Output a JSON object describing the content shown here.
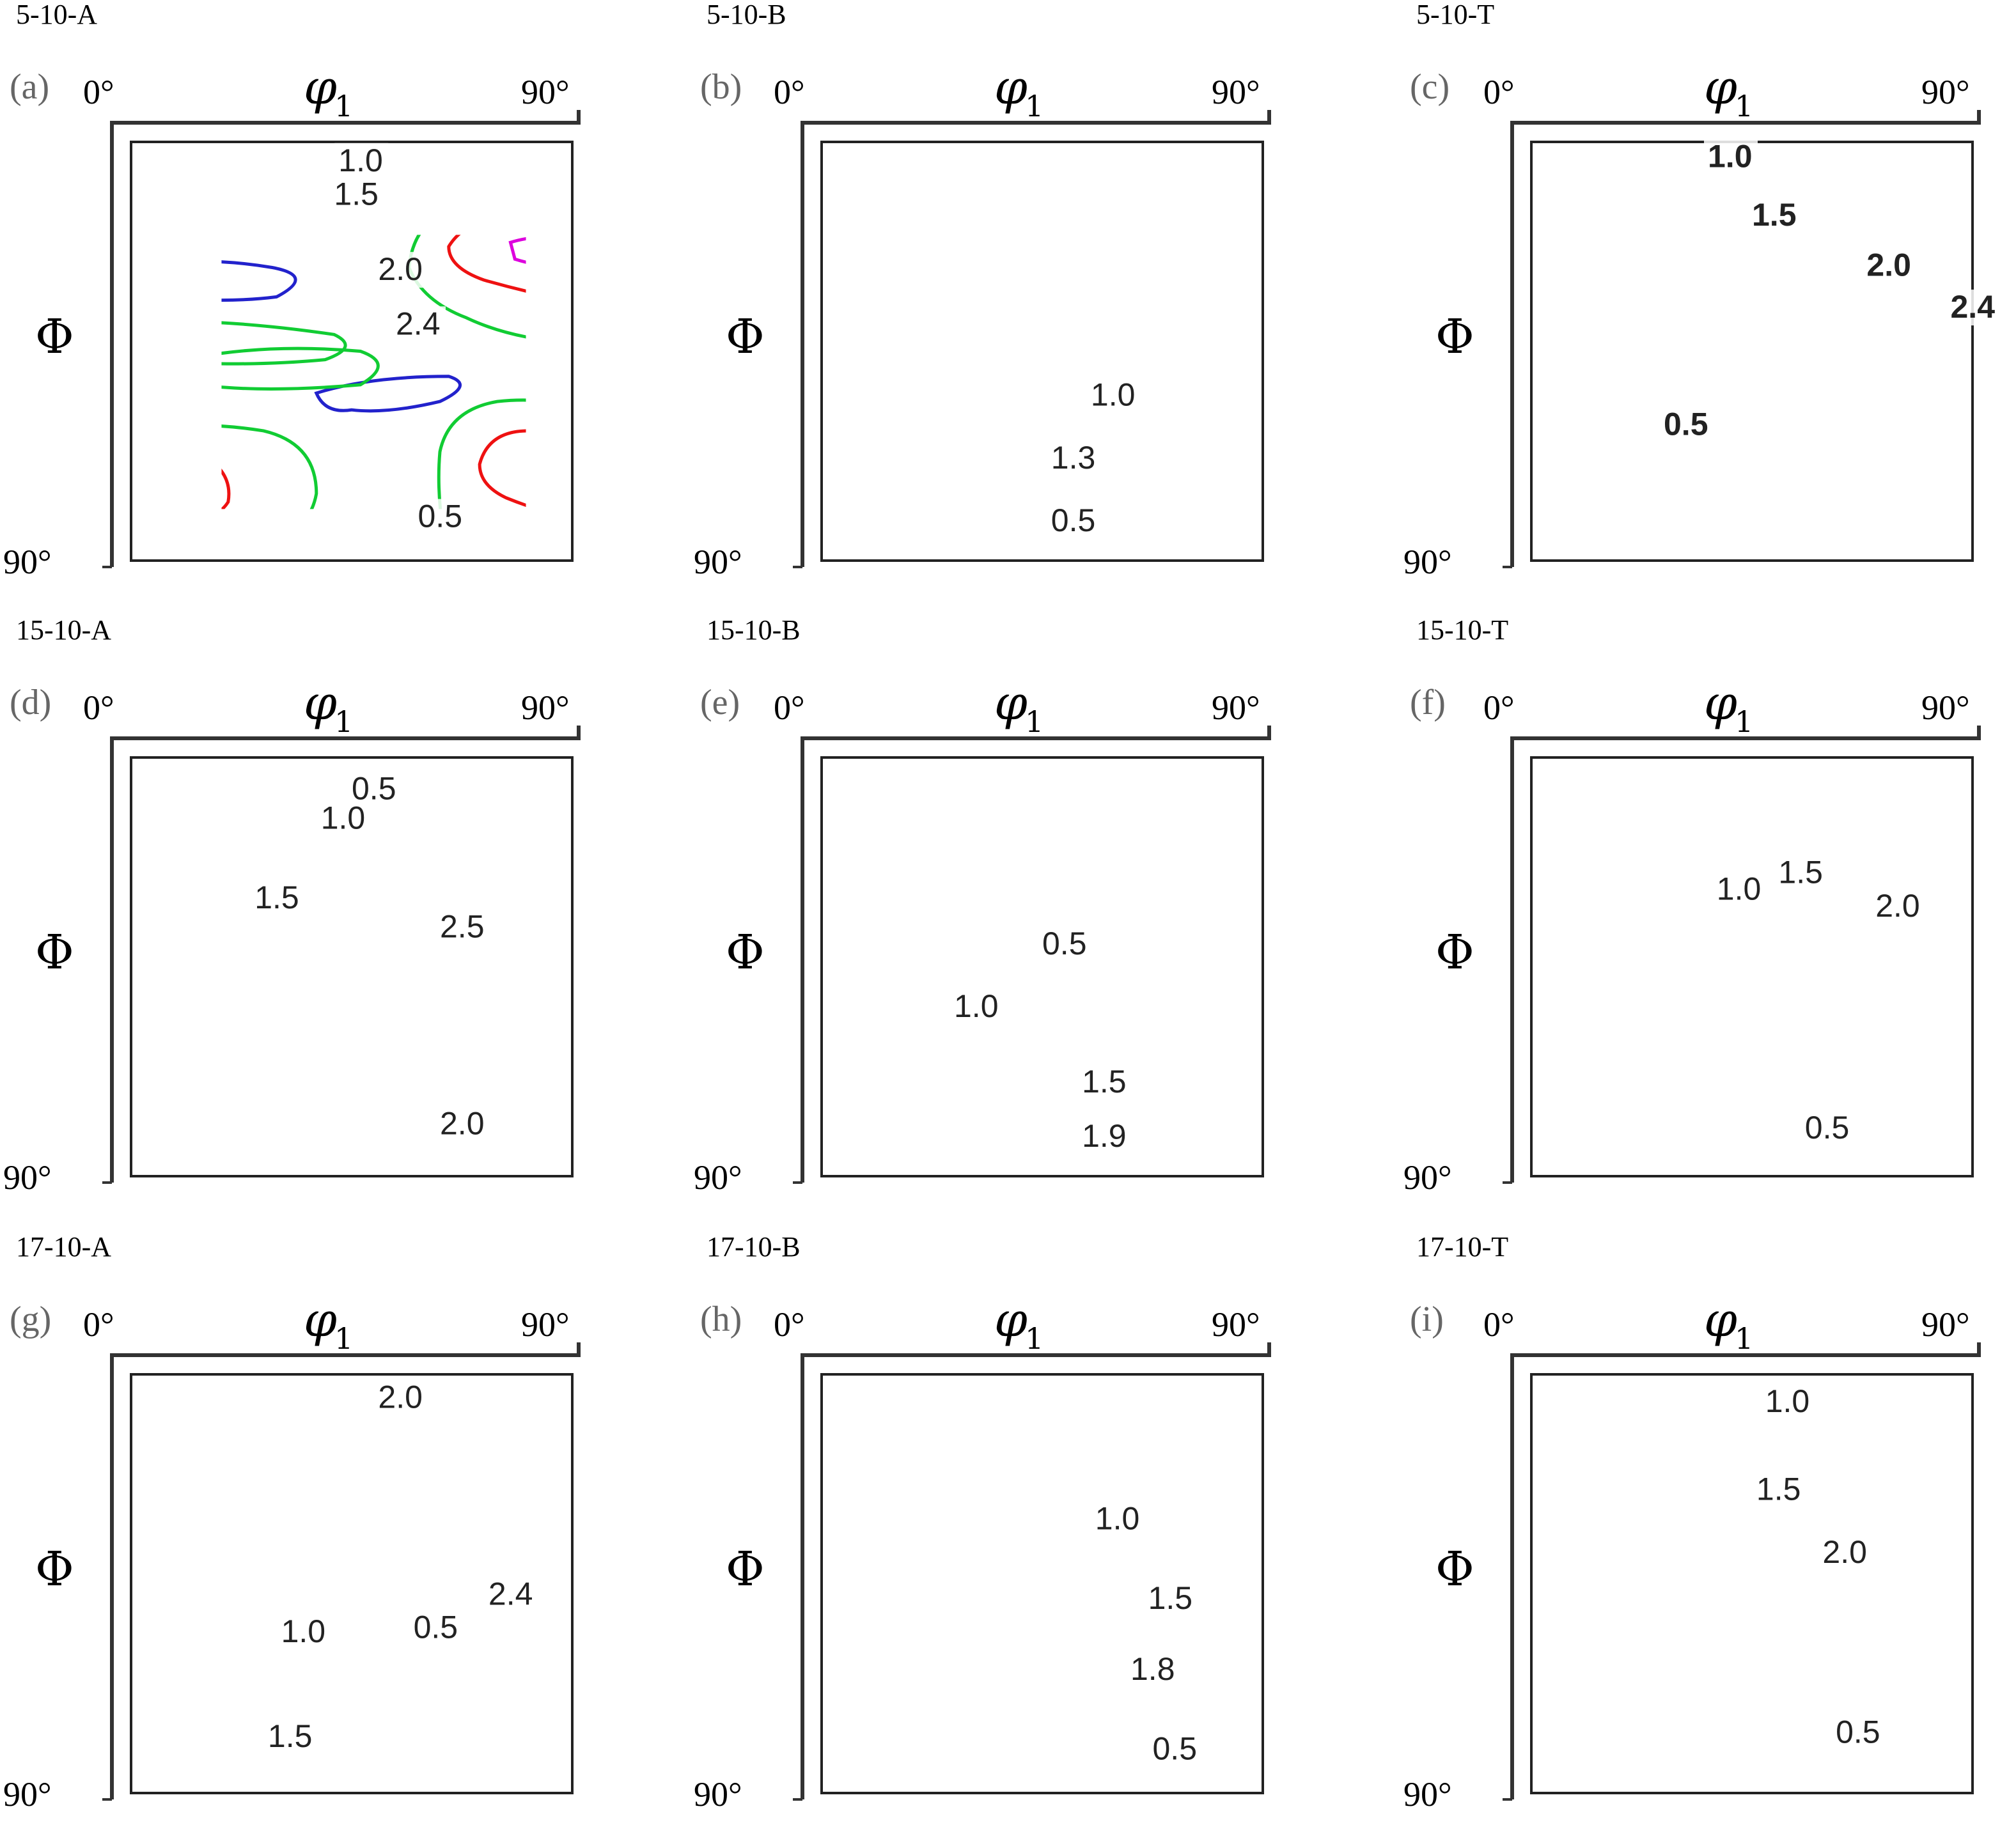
{
  "colors": {
    "0.5": "#2222cc",
    "1.0": "#11cc33",
    "red": "#ee1111",
    "high": "#dd00dd",
    "axis": "#333333"
  },
  "chart_data": [
    {
      "panel": "(a)",
      "sample": "5-10-A",
      "type": "contour",
      "xlabel_symbol": "φ",
      "xlabel_subscript": "1",
      "ylabel": "Φ",
      "x_ticks": [
        "0°",
        "90°"
      ],
      "y_ticks": [
        "0°",
        "90°"
      ],
      "contour_labels": [
        "1.0",
        "1.5",
        "2.0",
        "2.4",
        "0.5"
      ]
    },
    {
      "panel": "(b)",
      "sample": "5-10-B",
      "type": "contour",
      "xlabel_symbol": "φ",
      "xlabel_subscript": "1",
      "ylabel": "Φ",
      "x_ticks": [
        "0°",
        "90°"
      ],
      "y_ticks": [
        "0°",
        "90°"
      ],
      "contour_labels": [
        "1.0",
        "1.3",
        "0.5"
      ]
    },
    {
      "panel": "(c)",
      "sample": "5-10-T",
      "type": "contour",
      "xlabel_symbol": "φ",
      "xlabel_subscript": "1",
      "ylabel": "Φ",
      "x_ticks": [
        "0°",
        "90°"
      ],
      "y_ticks": [
        "0°",
        "90°"
      ],
      "contour_labels": [
        "1.0",
        "1.5",
        "2.0",
        "2.4",
        "0.5"
      ]
    },
    {
      "panel": "(d)",
      "sample": "15-10-A",
      "type": "contour",
      "xlabel_symbol": "φ",
      "xlabel_subscript": "1",
      "ylabel": "Φ",
      "x_ticks": [
        "0°",
        "90°"
      ],
      "y_ticks": [
        "0°",
        "90°"
      ],
      "contour_labels": [
        "0.5",
        "1.0",
        "1.5",
        "2.5",
        "2.0"
      ]
    },
    {
      "panel": "(e)",
      "sample": "15-10-B",
      "type": "contour",
      "xlabel_symbol": "φ",
      "xlabel_subscript": "1",
      "ylabel": "Φ",
      "x_ticks": [
        "0°",
        "90°"
      ],
      "y_ticks": [
        "0°",
        "90°"
      ],
      "contour_labels": [
        "0.5",
        "1.0",
        "1.5",
        "1.9"
      ]
    },
    {
      "panel": "(f)",
      "sample": "15-10-T",
      "type": "contour",
      "xlabel_symbol": "φ",
      "xlabel_subscript": "1",
      "ylabel": "Φ",
      "x_ticks": [
        "0°",
        "90°"
      ],
      "y_ticks": [
        "0°",
        "90°"
      ],
      "contour_labels": [
        "1.0",
        "1.5",
        "2.0",
        "0.5"
      ]
    },
    {
      "panel": "(g)",
      "sample": "17-10-A",
      "type": "contour",
      "xlabel_symbol": "φ",
      "xlabel_subscript": "1",
      "ylabel": "Φ",
      "x_ticks": [
        "0°",
        "90°"
      ],
      "y_ticks": [
        "0°",
        "90°"
      ],
      "contour_labels": [
        "2.0",
        "2.4",
        "0.5",
        "1.0",
        "1.5"
      ]
    },
    {
      "panel": "(h)",
      "sample": "17-10-B",
      "type": "contour",
      "xlabel_symbol": "φ",
      "xlabel_subscript": "1",
      "ylabel": "Φ",
      "x_ticks": [
        "0°",
        "90°"
      ],
      "y_ticks": [
        "0°",
        "90°"
      ],
      "contour_labels": [
        "1.0",
        "1.5",
        "1.8",
        "0.5"
      ]
    },
    {
      "panel": "(i)",
      "sample": "17-10-T",
      "type": "contour",
      "xlabel_symbol": "φ",
      "xlabel_subscript": "1",
      "ylabel": "Φ",
      "x_ticks": [
        "0°",
        "90°"
      ],
      "y_ticks": [
        "0°",
        "90°"
      ],
      "contour_labels": [
        "1.0",
        "1.5",
        "2.0",
        "0.5"
      ]
    }
  ]
}
